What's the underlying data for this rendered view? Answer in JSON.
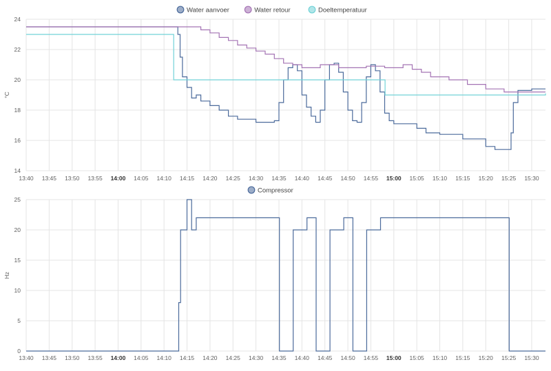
{
  "chart_data": [
    {
      "type": "line",
      "ylabel": "°C",
      "ylim": [
        14,
        24
      ],
      "yticks": [
        14,
        16,
        18,
        20,
        22,
        24
      ],
      "xlim": [
        "13:40",
        "15:33"
      ],
      "xticks": [
        "13:40",
        "13:45",
        "13:50",
        "13:55",
        "14:00",
        "14:05",
        "14:10",
        "14:15",
        "14:20",
        "14:25",
        "14:30",
        "14:35",
        "14:40",
        "14:45",
        "14:50",
        "14:55",
        "15:00",
        "15:05",
        "15:10",
        "15:15",
        "15:20",
        "15:25",
        "15:30"
      ],
      "bold_ticks": [
        "14:00",
        "15:00"
      ],
      "grid": true,
      "legend_position": "top-center",
      "series": [
        {
          "name": "Water aanvoer",
          "color": "#4b6a9b",
          "points": [
            [
              "13:40",
              23.5
            ],
            [
              "14:10",
              23.5
            ],
            [
              "14:12",
              23.5
            ],
            [
              "14:13",
              23.0
            ],
            [
              "14:13.5",
              21.5
            ],
            [
              "14:14",
              20.2
            ],
            [
              "14:15",
              19.5
            ],
            [
              "14:16",
              18.8
            ],
            [
              "14:17",
              19.0
            ],
            [
              "14:18",
              18.6
            ],
            [
              "14:20",
              18.3
            ],
            [
              "14:22",
              18.0
            ],
            [
              "14:24",
              17.6
            ],
            [
              "14:26",
              17.4
            ],
            [
              "14:28",
              17.4
            ],
            [
              "14:30",
              17.2
            ],
            [
              "14:32",
              17.2
            ],
            [
              "14:34",
              17.3
            ],
            [
              "14:35",
              18.5
            ],
            [
              "14:36",
              20.0
            ],
            [
              "14:37",
              20.8
            ],
            [
              "14:38",
              21.0
            ],
            [
              "14:39",
              20.6
            ],
            [
              "14:40",
              19.0
            ],
            [
              "14:41",
              18.2
            ],
            [
              "14:42",
              17.6
            ],
            [
              "14:43",
              17.2
            ],
            [
              "14:44",
              18.0
            ],
            [
              "14:45",
              20.0
            ],
            [
              "14:46",
              21.0
            ],
            [
              "14:47",
              21.1
            ],
            [
              "14:48",
              20.5
            ],
            [
              "14:49",
              19.2
            ],
            [
              "14:50",
              18.0
            ],
            [
              "14:51",
              17.3
            ],
            [
              "14:52",
              17.2
            ],
            [
              "14:53",
              18.5
            ],
            [
              "14:54",
              20.2
            ],
            [
              "14:55",
              21.0
            ],
            [
              "14:56",
              20.6
            ],
            [
              "14:57",
              19.2
            ],
            [
              "14:58",
              17.8
            ],
            [
              "14:59",
              17.3
            ],
            [
              "15:00",
              17.1
            ],
            [
              "15:05",
              16.8
            ],
            [
              "15:07",
              16.5
            ],
            [
              "15:10",
              16.4
            ],
            [
              "15:15",
              16.1
            ],
            [
              "15:20",
              15.6
            ],
            [
              "15:22",
              15.4
            ],
            [
              "15:24",
              15.4
            ],
            [
              "15:25",
              15.4
            ],
            [
              "15:25.5",
              16.5
            ],
            [
              "15:26",
              18.5
            ],
            [
              "15:27",
              19.3
            ],
            [
              "15:30",
              19.4
            ],
            [
              "15:33",
              19.4
            ]
          ]
        },
        {
          "name": "Water retour",
          "color": "#a473b4",
          "points": [
            [
              "13:40",
              23.5
            ],
            [
              "14:14",
              23.5
            ],
            [
              "14:18",
              23.3
            ],
            [
              "14:20",
              23.1
            ],
            [
              "14:22",
              22.8
            ],
            [
              "14:24",
              22.6
            ],
            [
              "14:26",
              22.3
            ],
            [
              "14:28",
              22.1
            ],
            [
              "14:30",
              21.9
            ],
            [
              "14:32",
              21.7
            ],
            [
              "14:34",
              21.4
            ],
            [
              "14:36",
              21.1
            ],
            [
              "14:38",
              21.0
            ],
            [
              "14:40",
              20.8
            ],
            [
              "14:44",
              21.0
            ],
            [
              "14:46",
              21.0
            ],
            [
              "14:48",
              20.8
            ],
            [
              "14:54",
              20.9
            ],
            [
              "14:58",
              20.8
            ],
            [
              "15:00",
              20.8
            ],
            [
              "15:02",
              21.0
            ],
            [
              "15:04",
              20.7
            ],
            [
              "15:06",
              20.5
            ],
            [
              "15:08",
              20.2
            ],
            [
              "15:12",
              20.0
            ],
            [
              "15:16",
              19.7
            ],
            [
              "15:20",
              19.4
            ],
            [
              "15:24",
              19.2
            ],
            [
              "15:33",
              19.2
            ]
          ]
        },
        {
          "name": "Doeltemperatuur",
          "color": "#71d2d7",
          "points": [
            [
              "13:40",
              23.0
            ],
            [
              "14:12",
              23.0
            ],
            [
              "14:12.1",
              20.0
            ],
            [
              "14:58",
              20.0
            ],
            [
              "14:58.1",
              19.0
            ],
            [
              "15:33",
              19.1
            ]
          ]
        }
      ]
    },
    {
      "type": "line",
      "ylabel": "Hz",
      "ylim": [
        0,
        25
      ],
      "yticks": [
        0,
        5,
        10,
        15,
        20,
        25
      ],
      "xlim": [
        "13:40",
        "15:33"
      ],
      "xticks": [
        "13:40",
        "13:45",
        "13:50",
        "13:55",
        "14:00",
        "14:05",
        "14:10",
        "14:15",
        "14:20",
        "14:25",
        "14:30",
        "14:35",
        "14:40",
        "14:45",
        "14:50",
        "14:55",
        "15:00",
        "15:05",
        "15:10",
        "15:15",
        "15:20",
        "15:25",
        "15:30"
      ],
      "bold_ticks": [
        "14:00",
        "15:00"
      ],
      "grid": true,
      "legend_position": "top-center",
      "series": [
        {
          "name": "Compressor",
          "color": "#4b6a9b",
          "points": [
            [
              "13:40",
              0
            ],
            [
              "14:13",
              0
            ],
            [
              "14:13.2",
              8
            ],
            [
              "14:13.6",
              20
            ],
            [
              "14:15",
              25
            ],
            [
              "14:16",
              20
            ],
            [
              "14:17",
              22
            ],
            [
              "14:35",
              22
            ],
            [
              "14:35.1",
              0
            ],
            [
              "14:38",
              0
            ],
            [
              "14:38.1",
              20
            ],
            [
              "14:41",
              20
            ],
            [
              "14:41.1",
              22
            ],
            [
              "14:43",
              22
            ],
            [
              "14:43.1",
              0
            ],
            [
              "14:46",
              0
            ],
            [
              "14:46.1",
              20
            ],
            [
              "14:49",
              20
            ],
            [
              "14:49.1",
              22
            ],
            [
              "14:51",
              22
            ],
            [
              "14:51.1",
              0
            ],
            [
              "14:54",
              0
            ],
            [
              "14:54.1",
              20
            ],
            [
              "14:57",
              20
            ],
            [
              "14:57.1",
              22
            ],
            [
              "15:25",
              22
            ],
            [
              "15:25.1",
              0
            ],
            [
              "15:33",
              0
            ]
          ]
        }
      ]
    }
  ]
}
